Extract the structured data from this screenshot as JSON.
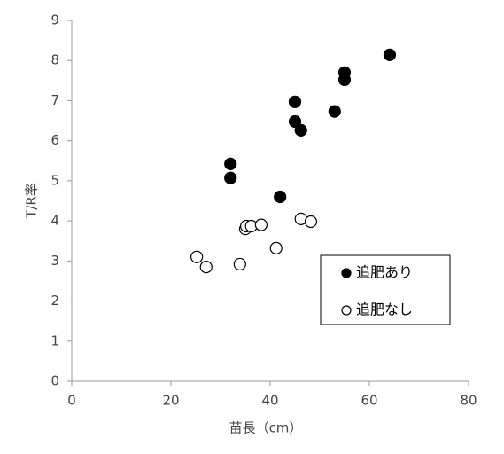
{
  "chart_data": {
    "type": "scatter",
    "xlabel": "苗長（cm）",
    "ylabel": "T/R率",
    "xlim": [
      0,
      80
    ],
    "xticks": [
      0,
      20,
      40,
      60,
      80
    ],
    "ylim": [
      0,
      9
    ],
    "yticks": [
      0,
      1,
      2,
      3,
      4,
      5,
      6,
      7,
      8,
      9
    ],
    "grid": false,
    "legend": "right",
    "series": [
      {
        "name": "追肥あり",
        "color": "#000000",
        "fill": "#000000",
        "x": [
          32.0,
          32.0,
          42.0,
          45.0,
          45.0,
          46.2,
          53.0,
          55.0,
          55.0,
          64.1
        ],
        "y": [
          5.42,
          5.07,
          4.6,
          6.97,
          6.48,
          6.26,
          6.73,
          7.7,
          7.52,
          8.14
        ]
      },
      {
        "name": "追肥なし",
        "color": "#000000",
        "fill": "#ffffff",
        "x": [
          25.2,
          27.1,
          33.9,
          35.0,
          35.2,
          36.2,
          38.2,
          41.2,
          46.2,
          48.2
        ],
        "y": [
          3.1,
          2.85,
          2.92,
          3.8,
          3.87,
          3.87,
          3.9,
          3.32,
          4.05,
          3.98
        ]
      }
    ]
  }
}
